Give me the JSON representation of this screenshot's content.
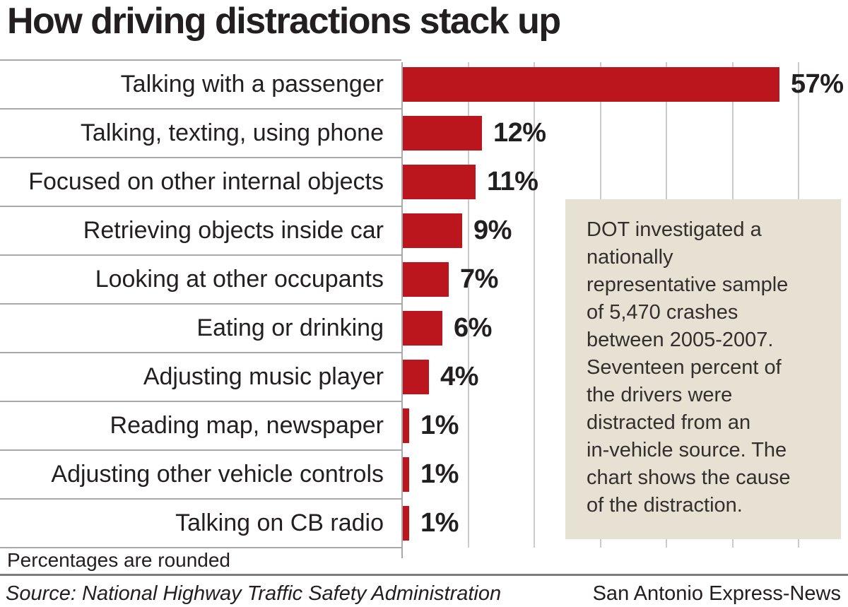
{
  "title": "How driving distractions stack up",
  "chart_data": {
    "type": "bar",
    "orientation": "horizontal",
    "title": "How driving distractions stack up",
    "categories": [
      "Talking with a passenger",
      "Talking, texting, using phone",
      "Focused on other internal objects",
      "Retrieving objects inside car",
      "Looking at other occupants",
      "Eating or drinking",
      "Adjusting music player",
      "Reading map, newspaper",
      "Adjusting other vehicle controls",
      "Talking on CB radio"
    ],
    "values": [
      57,
      12,
      11,
      9,
      7,
      6,
      4,
      1,
      1,
      1
    ],
    "value_labels": [
      "57%",
      "12%",
      "11%",
      "9%",
      "7%",
      "6%",
      "4%",
      "1%",
      "1%",
      "1%"
    ],
    "xlabel": "",
    "ylabel": "",
    "xlim": [
      0,
      67
    ],
    "gridline_values": [
      0,
      10,
      20,
      30,
      40,
      50,
      60
    ],
    "grid": true,
    "bar_color": "#bb161d",
    "label_color": "#231f20"
  },
  "annotation": {
    "lines": [
      "DOT investigated a",
      "nationally",
      "representative sample",
      "of 5,470 crashes",
      "between 2005-2007.",
      "Seventeen percent of",
      "the drivers were",
      "distracted from an",
      "in-vehicle source. The",
      "chart shows the cause",
      "of the distraction."
    ],
    "bg_color": "#e7e1d4"
  },
  "footer": {
    "note": "Percentages are rounded",
    "source": "Source: National Highway Traffic Safety Administration",
    "credit": "San Antonio Express-News"
  },
  "colors": {
    "bar": "#bb161d",
    "text": "#231f20",
    "gridline": "#cbcbcb",
    "row_separator": "#a9a9a9",
    "annotation_bg": "#e7e1d4",
    "footer_rule": "#7d7d7d"
  }
}
